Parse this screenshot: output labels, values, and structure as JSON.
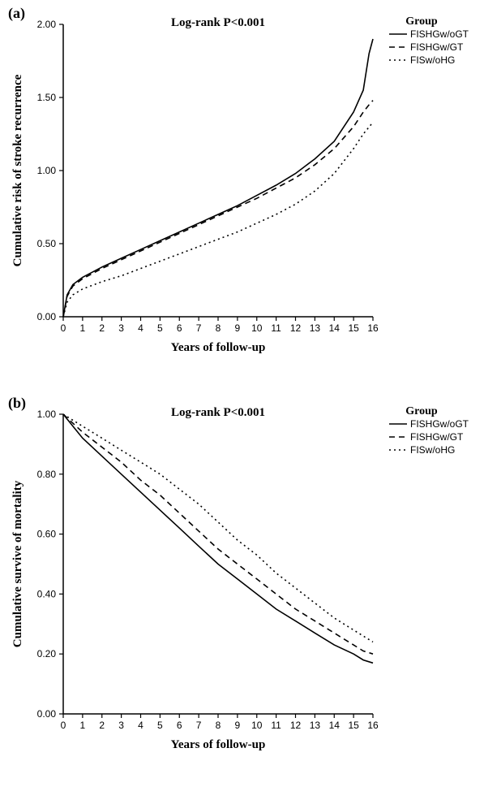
{
  "panels": {
    "a": {
      "label": "(a)",
      "title": "Log-rank P<0.001",
      "title_fontsize": 15,
      "title_fontweight": "bold",
      "ylabel": "Cumulative risk of stroke recurrence",
      "xlabel": "Years of follow-up",
      "label_fontsize": 15,
      "label_fontweight": "bold",
      "legend_title": "Group",
      "legend_title_fontsize": 14,
      "legend_title_fontweight": "bold",
      "legend_items": [
        "FISHGw/oGT",
        "FISHGw/GT",
        "FISw/oHG"
      ],
      "legend_fontsize": 12,
      "xlim": [
        0,
        16
      ],
      "xticks": [
        0,
        1,
        2,
        3,
        4,
        5,
        6,
        7,
        8,
        9,
        10,
        11,
        12,
        13,
        14,
        15,
        16
      ],
      "ylim": [
        0,
        2.0
      ],
      "yticks": [
        0.0,
        0.5,
        1.0,
        1.5,
        2.0
      ],
      "line_color": "#000000",
      "axis_color": "#000000",
      "background_color": "#ffffff",
      "tick_fontsize": 12,
      "series": {
        "s1": {
          "dash": "solid",
          "x": [
            0,
            0.2,
            0.5,
            1,
            2,
            3,
            4,
            5,
            6,
            7,
            8,
            9,
            10,
            11,
            12,
            13,
            14,
            15,
            15.5,
            15.8,
            16
          ],
          "y": [
            0,
            0.15,
            0.22,
            0.27,
            0.34,
            0.4,
            0.46,
            0.52,
            0.58,
            0.64,
            0.7,
            0.76,
            0.83,
            0.9,
            0.98,
            1.08,
            1.2,
            1.4,
            1.55,
            1.8,
            1.9
          ]
        },
        "s2": {
          "dash": "dash",
          "x": [
            0,
            0.2,
            0.5,
            1,
            2,
            3,
            4,
            5,
            6,
            7,
            8,
            9,
            10,
            11,
            12,
            13,
            14,
            15,
            15.5,
            15.8,
            16
          ],
          "y": [
            0,
            0.14,
            0.21,
            0.26,
            0.33,
            0.39,
            0.45,
            0.51,
            0.57,
            0.63,
            0.69,
            0.75,
            0.81,
            0.88,
            0.95,
            1.04,
            1.15,
            1.3,
            1.4,
            1.45,
            1.48
          ]
        },
        "s3": {
          "dash": "dot",
          "x": [
            0,
            0.2,
            0.5,
            1,
            2,
            3,
            4,
            5,
            6,
            7,
            8,
            9,
            10,
            11,
            12,
            13,
            14,
            15,
            15.5,
            16
          ],
          "y": [
            0,
            0.1,
            0.15,
            0.19,
            0.24,
            0.28,
            0.33,
            0.38,
            0.43,
            0.48,
            0.53,
            0.58,
            0.64,
            0.7,
            0.77,
            0.86,
            0.98,
            1.15,
            1.25,
            1.33
          ]
        }
      }
    },
    "b": {
      "label": "(b)",
      "title": "Log-rank P<0.001",
      "title_fontsize": 15,
      "title_fontweight": "bold",
      "ylabel": "Cumulative survive of mortality",
      "xlabel": "Years of follow-up",
      "label_fontsize": 15,
      "label_fontweight": "bold",
      "legend_title": "Group",
      "legend_title_fontsize": 14,
      "legend_title_fontweight": "bold",
      "legend_items": [
        "FISHGw/oGT",
        "FISHGw/GT",
        "FISw/oHG"
      ],
      "legend_fontsize": 12,
      "xlim": [
        0,
        16
      ],
      "xticks": [
        0,
        1,
        2,
        3,
        4,
        5,
        6,
        7,
        8,
        9,
        10,
        11,
        12,
        13,
        14,
        15,
        16
      ],
      "ylim": [
        0,
        1.0
      ],
      "yticks": [
        0.0,
        0.2,
        0.4,
        0.6,
        0.8,
        1.0
      ],
      "line_color": "#000000",
      "axis_color": "#000000",
      "background_color": "#ffffff",
      "tick_fontsize": 12,
      "series": {
        "s1": {
          "dash": "solid",
          "x": [
            0,
            0.5,
            1,
            2,
            3,
            4,
            5,
            6,
            7,
            8,
            9,
            10,
            11,
            12,
            13,
            14,
            15,
            15.5,
            16
          ],
          "y": [
            1.0,
            0.96,
            0.92,
            0.86,
            0.8,
            0.74,
            0.68,
            0.62,
            0.56,
            0.5,
            0.45,
            0.4,
            0.35,
            0.31,
            0.27,
            0.23,
            0.2,
            0.18,
            0.17
          ]
        },
        "s2": {
          "dash": "dash",
          "x": [
            0,
            0.5,
            1,
            2,
            3,
            4,
            5,
            6,
            7,
            8,
            9,
            10,
            11,
            12,
            13,
            14,
            15,
            15.5,
            16
          ],
          "y": [
            1.0,
            0.97,
            0.94,
            0.89,
            0.84,
            0.78,
            0.73,
            0.67,
            0.61,
            0.55,
            0.5,
            0.45,
            0.4,
            0.35,
            0.31,
            0.27,
            0.23,
            0.21,
            0.2
          ]
        },
        "s3": {
          "dash": "dot",
          "x": [
            0,
            0.5,
            1,
            2,
            3,
            4,
            5,
            6,
            7,
            8,
            9,
            10,
            11,
            12,
            13,
            14,
            15,
            15.5,
            16
          ],
          "y": [
            1.0,
            0.98,
            0.96,
            0.92,
            0.88,
            0.84,
            0.8,
            0.75,
            0.7,
            0.64,
            0.58,
            0.53,
            0.47,
            0.42,
            0.37,
            0.32,
            0.28,
            0.26,
            0.24
          ]
        }
      }
    }
  }
}
